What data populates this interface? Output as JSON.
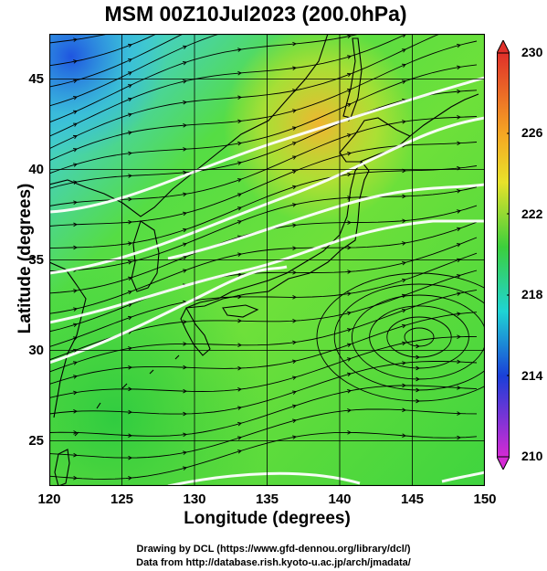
{
  "title": "MSM 00Z10Jul2023 (200.0hPa)",
  "xlabel": "Longitude (degrees)",
  "ylabel": "Latitude  (degrees)",
  "x_ticks": [
    "120",
    "125",
    "130",
    "135",
    "140",
    "145",
    "150"
  ],
  "y_ticks": [
    "25",
    "30",
    "35",
    "40",
    "45"
  ],
  "map": {
    "lon_range": [
      120,
      150
    ],
    "lat_range": [
      22.5,
      47.5
    ],
    "field": "temperature shading with wind streamlines and white contours",
    "gridlines": true
  },
  "colorbar": {
    "ticks": [
      "230",
      "226",
      "222",
      "218",
      "214",
      "210"
    ],
    "range": [
      210,
      230
    ],
    "colors": {
      "top": "#e0302a",
      "orange": "#f5a623",
      "yellow": "#e8e22a",
      "green": "#3ccf3c",
      "cyan": "#1fd4d4",
      "blue": "#1a3fd8",
      "bottom": "#d42ad4"
    }
  },
  "credits": {
    "line1": "Drawing by DCL (https://www.gfd-dennou.org/library/dcl/)",
    "line2": "Data from http://database.rish.kyoto-u.ac.jp/arch/jmadata/"
  }
}
